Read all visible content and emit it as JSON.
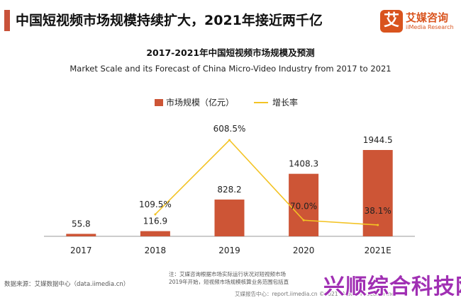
{
  "header": {
    "title": "中国短视频市场规模持续扩大，2021年接近两千亿",
    "logo_mark": "艾",
    "logo_name": "艾媒咨询",
    "logo_sub": "iiMedia Research",
    "accent_color": "#c8523a",
    "brand_color": "#d9541e"
  },
  "chart_data": {
    "type": "bar",
    "title": "2017-2021年中国短视频市场规模及预测",
    "subtitle": "Market Scale and its Forecast of China Micro-Video Industry from 2017 to 2021",
    "categories": [
      "2017",
      "2018",
      "2019",
      "2020",
      "2021E"
    ],
    "series": [
      {
        "name": "市场规模（亿元）",
        "kind": "bar",
        "color": "#cd5536",
        "values": [
          55.8,
          116.9,
          828.2,
          1408.3,
          1944.5
        ],
        "labels": [
          "55.8",
          "116.9",
          "828.2",
          "1408.3",
          "1944.5"
        ]
      },
      {
        "name": "增长率",
        "kind": "line",
        "color": "#f3c324",
        "values": [
          null,
          109.5,
          608.5,
          70.0,
          38.1
        ],
        "labels": [
          "",
          "109.5%",
          "608.5%",
          "70.0%",
          "38.1%"
        ]
      }
    ],
    "legend_position": "top",
    "grid": false
  },
  "footer": {
    "source": "数据来源：艾媒数据中心（data.iimedia.cn）",
    "note_line1": "注：艾媒咨询根据市场实际运行状况对短视频市场",
    "note_line2": "2019年开始，短视频市场规模核算业务范围包括直",
    "report": "艾媒报告中心：report.iimedia.cn  ©2021 iiMedia Research Inc",
    "watermark": "兴顺综合科技网"
  }
}
